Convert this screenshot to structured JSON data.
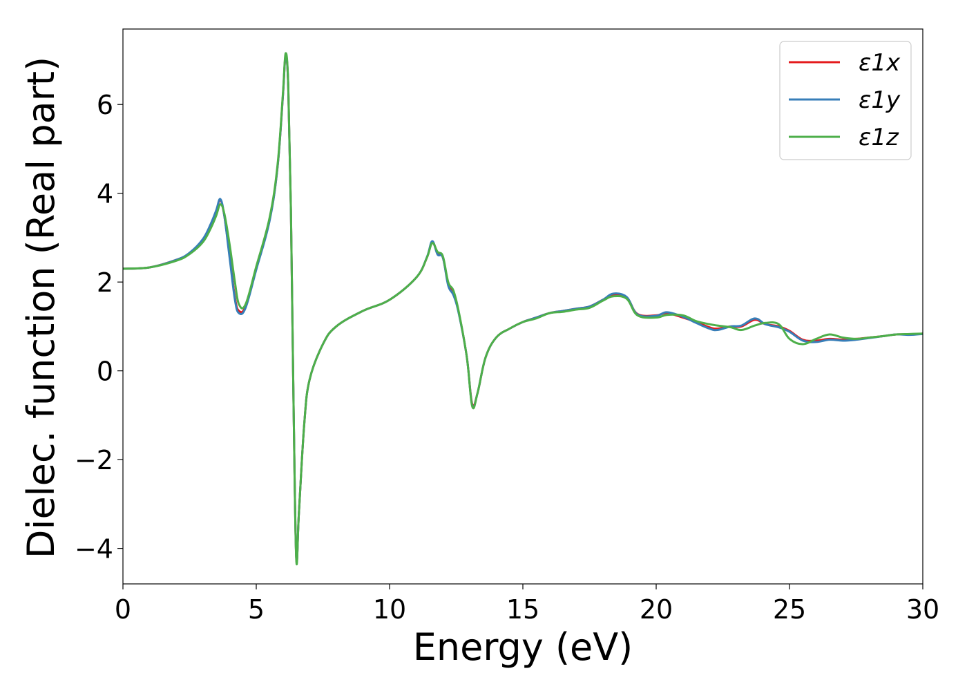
{
  "chart_data": {
    "type": "line",
    "xlabel": "Energy (eV)",
    "ylabel": "Dielec. function (Real part)",
    "xlim": [
      0,
      30
    ],
    "ylim": [
      -4.8,
      7.7
    ],
    "xticks": [
      0,
      5,
      10,
      15,
      20,
      25,
      30
    ],
    "xtick_labels": [
      "0",
      "5",
      "10",
      "15",
      "20",
      "25",
      "30"
    ],
    "yticks": [
      -4,
      -2,
      0,
      2,
      4,
      6
    ],
    "ytick_labels": [
      "−4",
      "−2",
      "0",
      "2",
      "4",
      "6"
    ],
    "grid": false,
    "legend_position": "top-right",
    "series": [
      {
        "name": "ε1x",
        "color": "#e41a1c",
        "x": [
          0,
          1,
          2,
          2.5,
          3,
          3.3,
          3.5,
          3.65,
          3.8,
          4.0,
          4.2,
          4.35,
          4.6,
          5.0,
          5.5,
          5.8,
          6.0,
          6.1,
          6.2,
          6.3,
          6.4,
          6.5,
          6.6,
          6.8,
          7.0,
          7.5,
          8,
          9,
          10,
          11,
          11.4,
          11.6,
          11.8,
          12.0,
          12.2,
          12.4,
          12.6,
          12.9,
          13.1,
          13.3,
          13.6,
          14,
          14.5,
          15,
          15.5,
          16,
          16.5,
          17,
          17.5,
          18,
          18.4,
          18.9,
          19.3,
          20,
          20.4,
          21,
          21.5,
          22,
          22.3,
          22.8,
          23.2,
          23.7,
          24.1,
          24.6,
          25,
          25.5,
          26,
          26.5,
          27,
          27.5,
          28,
          28.5,
          29,
          29.5,
          30
        ],
        "y": [
          2.3,
          2.33,
          2.5,
          2.65,
          2.95,
          3.3,
          3.6,
          3.85,
          3.5,
          2.6,
          1.65,
          1.35,
          1.45,
          2.3,
          3.4,
          4.6,
          6.2,
          7.1,
          6.4,
          3.6,
          -0.8,
          -4.2,
          -3.2,
          -1.2,
          -0.2,
          0.6,
          1.0,
          1.35,
          1.6,
          2.1,
          2.55,
          2.9,
          2.65,
          2.55,
          1.95,
          1.75,
          1.3,
          0.3,
          -0.75,
          -0.5,
          0.3,
          0.75,
          0.95,
          1.1,
          1.2,
          1.3,
          1.35,
          1.4,
          1.45,
          1.6,
          1.72,
          1.65,
          1.28,
          1.25,
          1.3,
          1.2,
          1.1,
          0.98,
          0.95,
          1.0,
          1.0,
          1.15,
          1.05,
          1.0,
          0.9,
          0.7,
          0.68,
          0.72,
          0.7,
          0.72,
          0.75,
          0.78,
          0.82,
          0.82,
          0.84
        ]
      },
      {
        "name": "ε1y",
        "color": "#377eb8",
        "x": [
          0,
          1,
          2,
          2.5,
          3,
          3.3,
          3.5,
          3.65,
          3.8,
          4.0,
          4.2,
          4.35,
          4.6,
          5.0,
          5.5,
          5.8,
          6.0,
          6.1,
          6.2,
          6.3,
          6.4,
          6.5,
          6.6,
          6.8,
          7.0,
          7.5,
          8,
          9,
          10,
          11,
          11.4,
          11.6,
          11.8,
          12.0,
          12.2,
          12.4,
          12.6,
          12.9,
          13.1,
          13.3,
          13.6,
          14,
          14.5,
          15,
          15.5,
          16,
          16.5,
          17,
          17.5,
          18,
          18.4,
          18.9,
          19.3,
          20,
          20.4,
          21,
          21.5,
          22,
          22.3,
          22.8,
          23.2,
          23.7,
          24.1,
          24.6,
          25,
          25.5,
          26,
          26.5,
          27,
          27.5,
          28,
          28.5,
          29,
          29.5,
          30
        ],
        "y": [
          2.3,
          2.33,
          2.5,
          2.66,
          2.97,
          3.32,
          3.62,
          3.87,
          3.5,
          2.55,
          1.6,
          1.3,
          1.42,
          2.28,
          3.38,
          4.6,
          6.2,
          7.1,
          6.4,
          3.6,
          -0.8,
          -4.2,
          -3.2,
          -1.2,
          -0.2,
          0.6,
          1.0,
          1.35,
          1.6,
          2.1,
          2.56,
          2.92,
          2.62,
          2.55,
          1.92,
          1.7,
          1.28,
          0.3,
          -0.78,
          -0.5,
          0.3,
          0.75,
          0.95,
          1.1,
          1.2,
          1.3,
          1.35,
          1.4,
          1.45,
          1.6,
          1.74,
          1.66,
          1.27,
          1.24,
          1.32,
          1.22,
          1.08,
          0.95,
          0.92,
          1.0,
          1.02,
          1.18,
          1.05,
          0.98,
          0.88,
          0.68,
          0.65,
          0.7,
          0.68,
          0.7,
          0.74,
          0.78,
          0.82,
          0.81,
          0.83
        ]
      },
      {
        "name": "ε1z",
        "color": "#4daf4a",
        "x": [
          0,
          1,
          2,
          2.5,
          3,
          3.3,
          3.5,
          3.65,
          3.8,
          4.0,
          4.2,
          4.35,
          4.6,
          5.0,
          5.5,
          5.8,
          6.0,
          6.1,
          6.2,
          6.3,
          6.4,
          6.5,
          6.6,
          6.8,
          7.0,
          7.5,
          8,
          9,
          10,
          11,
          11.4,
          11.6,
          11.8,
          12.0,
          12.2,
          12.4,
          12.6,
          12.9,
          13.1,
          13.3,
          13.6,
          14,
          14.5,
          15,
          15.5,
          16,
          16.5,
          17,
          17.5,
          18,
          18.4,
          18.9,
          19.3,
          20,
          20.4,
          21,
          21.5,
          22,
          22.3,
          22.8,
          23.2,
          23.7,
          24.1,
          24.6,
          25,
          25.5,
          26,
          26.5,
          27,
          27.5,
          28,
          28.5,
          29,
          29.5,
          30
        ],
        "y": [
          2.3,
          2.33,
          2.48,
          2.63,
          2.9,
          3.22,
          3.5,
          3.75,
          3.55,
          2.85,
          2.0,
          1.5,
          1.5,
          2.35,
          3.45,
          4.65,
          6.25,
          7.15,
          6.45,
          3.65,
          -0.8,
          -4.25,
          -3.2,
          -1.2,
          -0.2,
          0.6,
          1.0,
          1.35,
          1.6,
          2.1,
          2.55,
          2.88,
          2.68,
          2.58,
          2.0,
          1.8,
          1.32,
          0.3,
          -0.8,
          -0.5,
          0.3,
          0.75,
          0.95,
          1.1,
          1.18,
          1.3,
          1.33,
          1.38,
          1.42,
          1.58,
          1.68,
          1.62,
          1.25,
          1.2,
          1.26,
          1.25,
          1.12,
          1.05,
          1.02,
          0.98,
          0.92,
          1.02,
          1.08,
          1.05,
          0.72,
          0.6,
          0.72,
          0.82,
          0.75,
          0.72,
          0.75,
          0.78,
          0.82,
          0.83,
          0.84
        ]
      }
    ]
  }
}
